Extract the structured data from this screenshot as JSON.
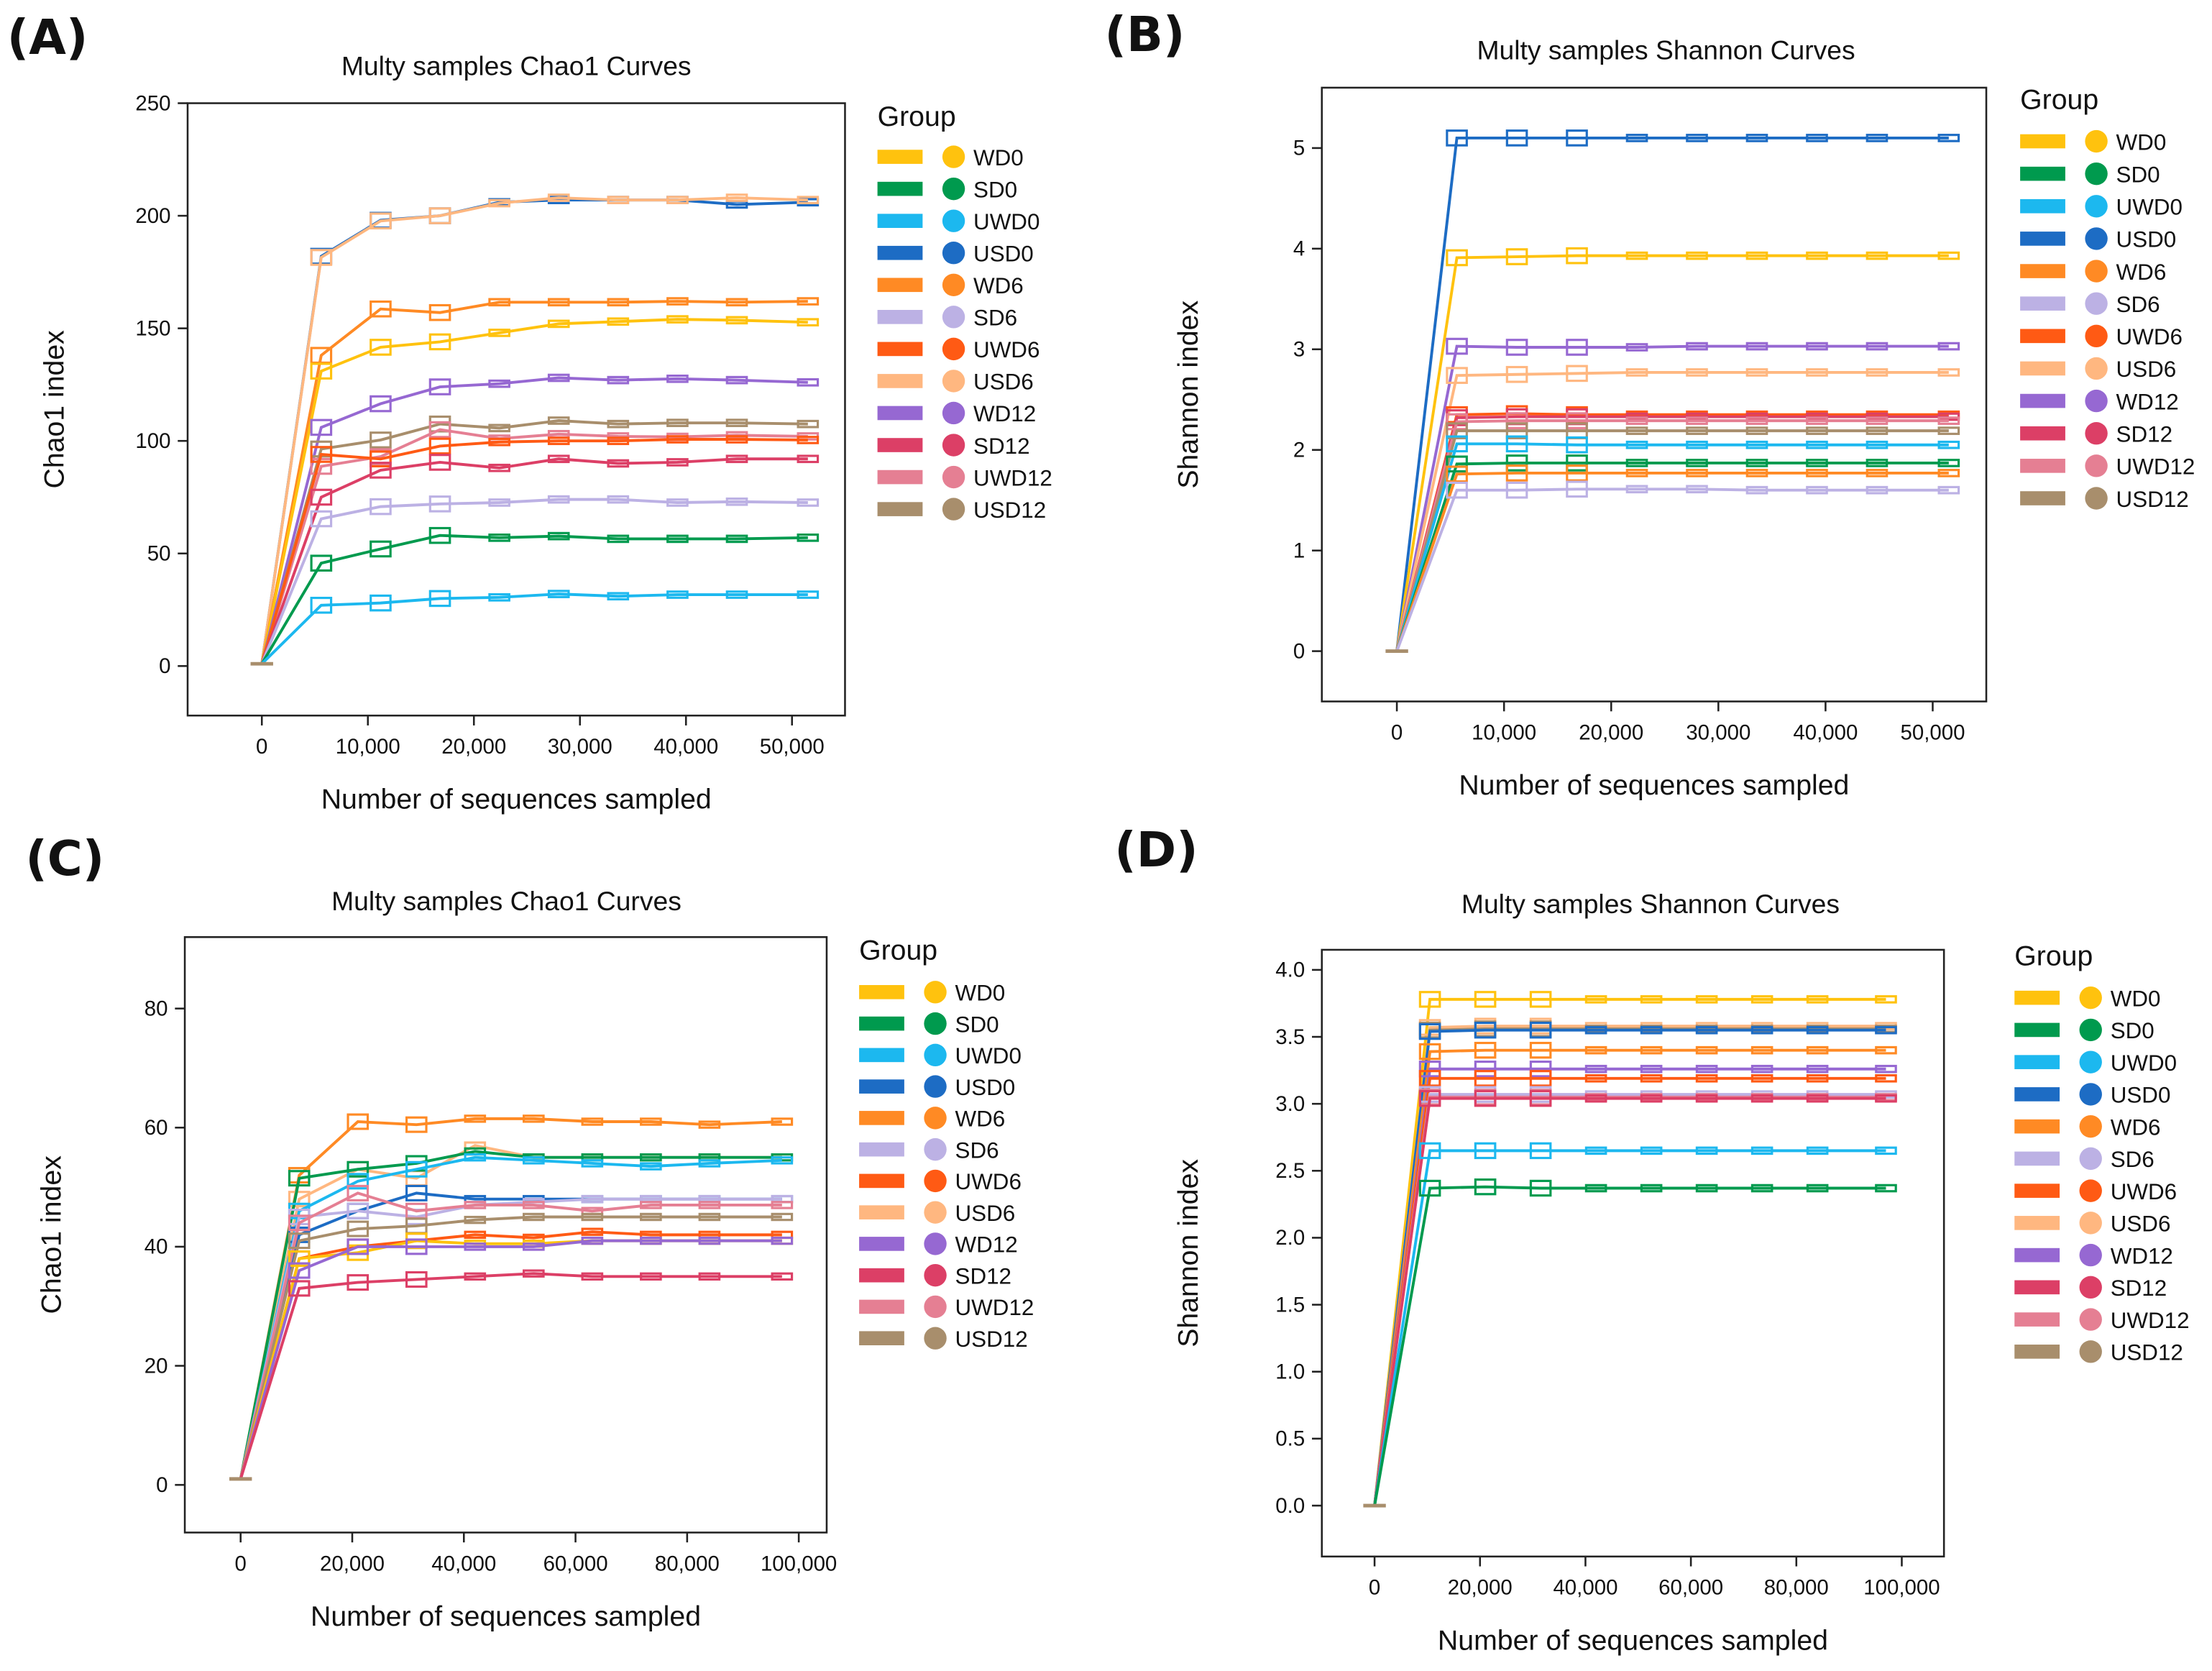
{
  "groups": [
    "WD0",
    "SD0",
    "UWD0",
    "USD0",
    "WD6",
    "SD6",
    "UWD6",
    "USD6",
    "WD12",
    "SD12",
    "UWD12",
    "USD12"
  ],
  "colors": {
    "WD0": "#ffc20e",
    "SD0": "#009a4e",
    "UWD0": "#1cb8ef",
    "USD0": "#1d6cc4",
    "WD6": "#ff8a24",
    "SD6": "#bcb1e4",
    "UWD6": "#ff5a14",
    "USD6": "#ffb780",
    "WD12": "#9668d2",
    "SD12": "#dc3f66",
    "UWD12": "#e57f93",
    "USD12": "#a88e6c"
  },
  "legend_title": "Group",
  "chart_data": [
    {
      "panel": "(A)",
      "type": "line",
      "title": "Multy samples Chao1 Curves",
      "xlabel": "Number of sequences sampled",
      "ylabel": "Chao1 index",
      "xlim": [
        -7000,
        55000
      ],
      "ylim": [
        -22,
        250
      ],
      "xticks": [
        0,
        10000,
        20000,
        30000,
        40000,
        50000
      ],
      "xtick_labels": [
        "0",
        "10,000",
        "20,000",
        "30,000",
        "40,000",
        "50,000"
      ],
      "yticks": [
        0,
        50,
        100,
        150,
        200,
        250
      ],
      "ytick_labels": [
        "0",
        "50",
        "100",
        "150",
        "200",
        "250"
      ],
      "x": [
        0,
        5600,
        11200,
        16800,
        22400,
        28000,
        33600,
        39200,
        44800,
        51500
      ],
      "series": [
        {
          "name": "USD0",
          "values": [
            1,
            182,
            198,
            200,
            206,
            207,
            207,
            207,
            205,
            206
          ]
        },
        {
          "name": "USD6",
          "values": [
            1,
            181.5,
            197.7,
            200,
            205.6,
            208,
            207,
            207,
            208,
            207
          ]
        },
        {
          "name": "WD6",
          "values": [
            1,
            138,
            158.6,
            157,
            161.6,
            161.6,
            161.6,
            162,
            161.6,
            162
          ]
        },
        {
          "name": "WD0",
          "values": [
            1,
            131,
            141.6,
            144,
            148,
            152,
            153,
            154,
            153.6,
            152.7
          ]
        },
        {
          "name": "WD12",
          "values": [
            1,
            106,
            116.5,
            124,
            125.4,
            128,
            127,
            127.6,
            127,
            126
          ]
        },
        {
          "name": "USD12",
          "values": [
            1,
            96.4,
            100.4,
            107.5,
            105.7,
            109,
            107.5,
            108,
            108,
            107.5
          ]
        },
        {
          "name": "UWD12",
          "values": [
            1,
            88.7,
            93,
            105,
            101,
            103,
            102,
            101.8,
            102.5,
            102
          ]
        },
        {
          "name": "UWD6",
          "values": [
            1,
            94,
            92,
            97.7,
            99.5,
            100,
            100,
            100.7,
            100.7,
            100.4
          ]
        },
        {
          "name": "SD12",
          "values": [
            1,
            75,
            87,
            90.5,
            88,
            92,
            90,
            90.5,
            92,
            92
          ]
        },
        {
          "name": "SD6",
          "values": [
            1,
            65.4,
            70.8,
            72,
            72.6,
            74,
            74,
            72.6,
            73,
            72.6
          ]
        },
        {
          "name": "SD0",
          "values": [
            1,
            45.7,
            52,
            58,
            57,
            57.7,
            56.5,
            56.5,
            56.5,
            57
          ]
        },
        {
          "name": "UWD0",
          "values": [
            1,
            27,
            28,
            30,
            30.5,
            32,
            31,
            31.7,
            31.7,
            31.7
          ]
        }
      ]
    },
    {
      "panel": "(B)",
      "type": "line",
      "title": "Multy samples Shannon Curves",
      "xlabel": "Number of sequences sampled",
      "ylabel": "Shannon index",
      "xlim": [
        -7000,
        55000
      ],
      "ylim": [
        -0.5,
        5.6
      ],
      "xticks": [
        0,
        10000,
        20000,
        30000,
        40000,
        50000
      ],
      "xtick_labels": [
        "0",
        "10,000",
        "20,000",
        "30,000",
        "40,000",
        "50,000"
      ],
      "yticks": [
        0,
        1,
        2,
        3,
        4,
        5
      ],
      "ytick_labels": [
        "0",
        "1",
        "2",
        "3",
        "4",
        "5"
      ],
      "x": [
        0,
        5600,
        11200,
        16800,
        22400,
        28000,
        33600,
        39200,
        44800,
        51500
      ],
      "series": [
        {
          "name": "USD0",
          "values": [
            0,
            5.1,
            5.1,
            5.1,
            5.1,
            5.1,
            5.1,
            5.1,
            5.1,
            5.1
          ]
        },
        {
          "name": "WD0",
          "values": [
            0,
            3.91,
            3.92,
            3.93,
            3.93,
            3.93,
            3.93,
            3.93,
            3.93,
            3.93
          ]
        },
        {
          "name": "WD12",
          "values": [
            0,
            3.03,
            3.02,
            3.02,
            3.02,
            3.03,
            3.03,
            3.03,
            3.03,
            3.03
          ]
        },
        {
          "name": "USD6",
          "values": [
            0,
            2.74,
            2.75,
            2.76,
            2.77,
            2.77,
            2.77,
            2.77,
            2.77,
            2.77
          ]
        },
        {
          "name": "UWD6",
          "values": [
            0,
            2.35,
            2.36,
            2.35,
            2.35,
            2.35,
            2.35,
            2.35,
            2.35,
            2.35
          ]
        },
        {
          "name": "SD12",
          "values": [
            0,
            2.32,
            2.33,
            2.33,
            2.33,
            2.33,
            2.33,
            2.33,
            2.33,
            2.33
          ]
        },
        {
          "name": "UWD12",
          "values": [
            0,
            2.28,
            2.29,
            2.29,
            2.29,
            2.29,
            2.29,
            2.29,
            2.29,
            2.29
          ]
        },
        {
          "name": "USD12",
          "values": [
            0,
            2.19,
            2.19,
            2.19,
            2.19,
            2.19,
            2.19,
            2.19,
            2.19,
            2.19
          ]
        },
        {
          "name": "UWD0",
          "values": [
            0,
            2.06,
            2.06,
            2.05,
            2.05,
            2.05,
            2.05,
            2.05,
            2.05,
            2.05
          ]
        },
        {
          "name": "SD0",
          "values": [
            0,
            1.86,
            1.87,
            1.87,
            1.87,
            1.87,
            1.87,
            1.87,
            1.87,
            1.87
          ]
        },
        {
          "name": "WD6",
          "values": [
            0,
            1.76,
            1.77,
            1.77,
            1.77,
            1.77,
            1.77,
            1.77,
            1.77,
            1.77
          ]
        },
        {
          "name": "SD6",
          "values": [
            0,
            1.6,
            1.6,
            1.61,
            1.61,
            1.61,
            1.6,
            1.6,
            1.6,
            1.6
          ]
        }
      ]
    },
    {
      "panel": "(C)",
      "type": "line",
      "title": "Multy samples Chao1 Curves",
      "xlabel": "Number of sequences sampled",
      "ylabel": "Chao1 index",
      "xlim": [
        -10000,
        105000
      ],
      "ylim": [
        -8,
        92
      ],
      "xticks": [
        0,
        20000,
        40000,
        60000,
        80000,
        100000
      ],
      "xtick_labels": [
        "0",
        "20,000",
        "40,000",
        "60,000",
        "80,000",
        "100,000"
      ],
      "yticks": [
        0,
        20,
        40,
        60,
        80
      ],
      "ytick_labels": [
        "0",
        "20",
        "40",
        "60",
        "80"
      ],
      "x": [
        0,
        10500,
        21000,
        31500,
        42000,
        52500,
        63000,
        73500,
        84000,
        97000
      ],
      "series": [
        {
          "name": "WD6",
          "values": [
            1,
            52,
            61,
            60.5,
            61.5,
            61.5,
            61,
            61,
            60.5,
            61
          ]
        },
        {
          "name": "USD6",
          "values": [
            1,
            48,
            53,
            51.5,
            57,
            55,
            55,
            55,
            55,
            55
          ]
        },
        {
          "name": "SD0",
          "values": [
            1,
            51.5,
            53,
            54,
            56,
            55,
            55,
            55,
            55,
            55
          ]
        },
        {
          "name": "UWD0",
          "values": [
            1,
            46,
            51,
            53,
            55,
            54.5,
            54,
            53.5,
            54,
            54.5
          ]
        },
        {
          "name": "USD0",
          "values": [
            1,
            42,
            46,
            49,
            48,
            48,
            48,
            48,
            48,
            48
          ]
        },
        {
          "name": "SD6",
          "values": [
            1,
            45,
            46,
            45,
            47,
            47.5,
            48,
            48,
            48,
            48
          ]
        },
        {
          "name": "UWD12",
          "values": [
            1,
            44,
            49,
            46,
            47,
            47,
            46,
            47,
            47,
            47
          ]
        },
        {
          "name": "USD12",
          "values": [
            1,
            41,
            43,
            43.5,
            44.5,
            45,
            45,
            45,
            45,
            45
          ]
        },
        {
          "name": "UWD6",
          "values": [
            1,
            38,
            40,
            41,
            42,
            41.5,
            42.5,
            42,
            42,
            42
          ]
        },
        {
          "name": "WD0",
          "values": [
            1,
            38,
            39,
            41,
            40.5,
            40.5,
            41,
            41,
            41,
            41
          ]
        },
        {
          "name": "WD12",
          "values": [
            1,
            36,
            40,
            40,
            40,
            40,
            41,
            41,
            41,
            41
          ]
        },
        {
          "name": "SD12",
          "values": [
            1,
            33,
            34,
            34.5,
            35,
            35.5,
            35,
            35,
            35,
            35
          ]
        }
      ]
    },
    {
      "panel": "(D)",
      "type": "line",
      "title": "Multy samples Shannon Curves",
      "xlabel": "Number of sequences sampled",
      "ylabel": "Shannon index",
      "xlim": [
        -10000,
        108000
      ],
      "ylim": [
        -0.38,
        4.15
      ],
      "xticks": [
        0,
        20000,
        40000,
        60000,
        80000,
        100000
      ],
      "xtick_labels": [
        "0",
        "20,000",
        "40,000",
        "60,000",
        "80,000",
        "100,000"
      ],
      "yticks": [
        0,
        0.5,
        1,
        1.5,
        2,
        2.5,
        3,
        3.5,
        4
      ],
      "ytick_labels": [
        "0.0",
        "0.5",
        "1.0",
        "1.5",
        "2.0",
        "2.5",
        "3.0",
        "3.5",
        "4.0"
      ],
      "x": [
        0,
        10500,
        21000,
        31500,
        42000,
        52500,
        63000,
        73500,
        84000,
        97000
      ],
      "series": [
        {
          "name": "WD0",
          "values": [
            0,
            3.78,
            3.78,
            3.78,
            3.78,
            3.78,
            3.78,
            3.78,
            3.78,
            3.78
          ]
        },
        {
          "name": "USD6",
          "values": [
            0,
            3.57,
            3.58,
            3.58,
            3.58,
            3.58,
            3.58,
            3.58,
            3.58,
            3.58
          ]
        },
        {
          "name": "USD12",
          "values": [
            0,
            3.55,
            3.56,
            3.56,
            3.56,
            3.56,
            3.56,
            3.56,
            3.56,
            3.56
          ]
        },
        {
          "name": "USD0",
          "values": [
            0,
            3.54,
            3.55,
            3.55,
            3.55,
            3.55,
            3.55,
            3.55,
            3.55,
            3.55
          ]
        },
        {
          "name": "WD6",
          "values": [
            0,
            3.39,
            3.4,
            3.4,
            3.4,
            3.4,
            3.4,
            3.4,
            3.4,
            3.4
          ]
        },
        {
          "name": "WD12",
          "values": [
            0,
            3.26,
            3.26,
            3.26,
            3.26,
            3.26,
            3.26,
            3.26,
            3.26,
            3.26
          ]
        },
        {
          "name": "UWD6",
          "values": [
            0,
            3.19,
            3.19,
            3.19,
            3.19,
            3.19,
            3.19,
            3.19,
            3.19,
            3.19
          ]
        },
        {
          "name": "SD6",
          "values": [
            0,
            3.07,
            3.07,
            3.07,
            3.07,
            3.07,
            3.07,
            3.07,
            3.07,
            3.07
          ]
        },
        {
          "name": "UWD12",
          "values": [
            0,
            3.05,
            3.05,
            3.05,
            3.05,
            3.05,
            3.05,
            3.05,
            3.05,
            3.05
          ]
        },
        {
          "name": "SD12",
          "values": [
            0,
            3.04,
            3.04,
            3.04,
            3.04,
            3.04,
            3.04,
            3.04,
            3.04,
            3.04
          ]
        },
        {
          "name": "UWD0",
          "values": [
            0,
            2.65,
            2.65,
            2.65,
            2.65,
            2.65,
            2.65,
            2.65,
            2.65,
            2.65
          ]
        },
        {
          "name": "SD0",
          "values": [
            0,
            2.37,
            2.38,
            2.37,
            2.37,
            2.37,
            2.37,
            2.37,
            2.37,
            2.37
          ]
        }
      ]
    }
  ]
}
